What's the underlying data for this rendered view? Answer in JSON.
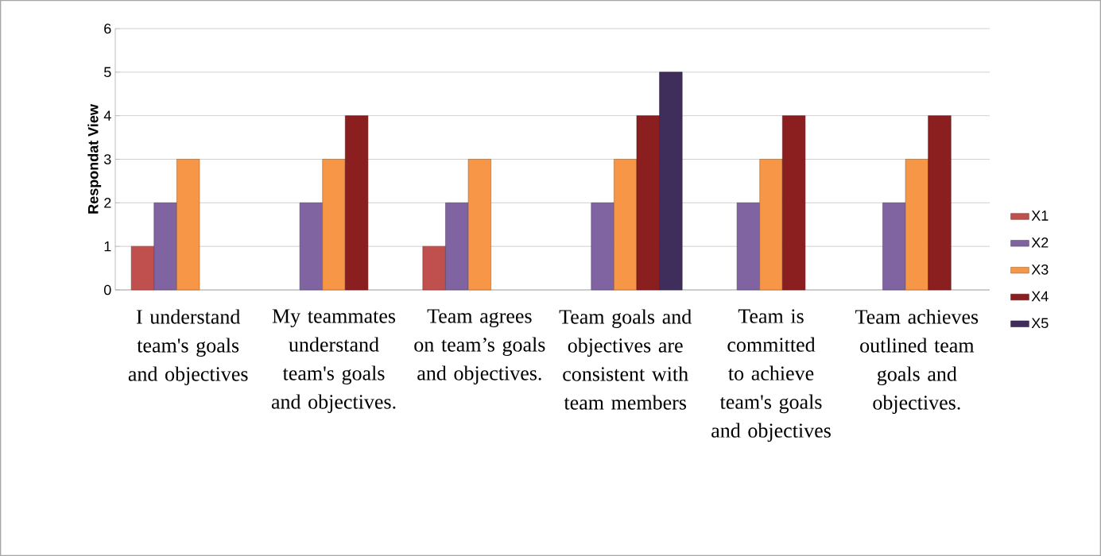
{
  "chart_data": {
    "type": "bar",
    "ylabel": "Respondat View",
    "categories": [
      "I understand team's goals and objectives",
      "My teammates understand team's goals and objectives.",
      "Team agrees on team’s goals and objectives.",
      "Team goals and objectives are consistent with team members",
      "Team is committed to achieve team's goals and objectives",
      "Team achieves outlined team goals and objectives."
    ],
    "series": [
      {
        "name": "X1",
        "color": "#c0504d",
        "values": [
          1,
          null,
          1,
          null,
          null,
          null
        ]
      },
      {
        "name": "X2",
        "color": "#8064a2",
        "values": [
          2,
          2,
          2,
          2,
          2,
          2
        ]
      },
      {
        "name": "X3",
        "color": "#f79646",
        "values": [
          3,
          3,
          3,
          3,
          3,
          3
        ]
      },
      {
        "name": "X4",
        "color": "#8b1e1e",
        "values": [
          null,
          4,
          null,
          4,
          4,
          4
        ]
      },
      {
        "name": "X5",
        "color": "#3f2d5c",
        "values": [
          null,
          null,
          null,
          5,
          null,
          null
        ]
      }
    ],
    "ylim": [
      0,
      6
    ],
    "yticks": [
      0,
      1,
      2,
      3,
      4,
      5,
      6
    ],
    "grid": "y",
    "legend": "right"
  }
}
